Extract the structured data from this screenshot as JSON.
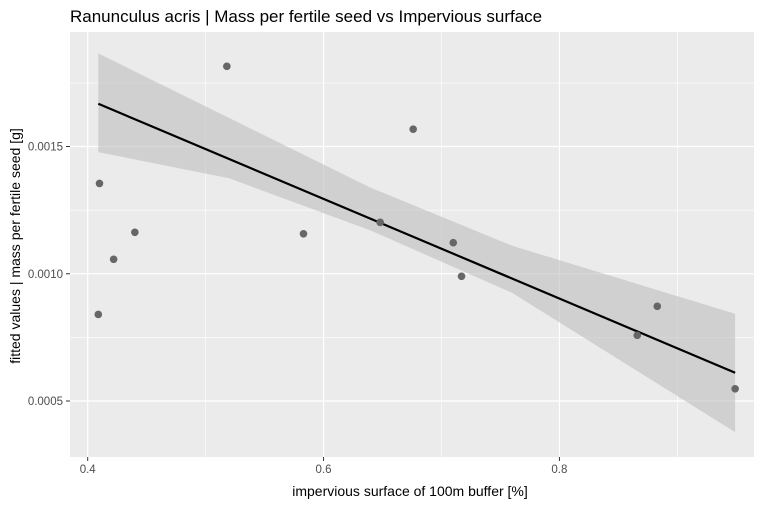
{
  "chart_data": {
    "type": "scatter",
    "title": "Ranunculus acris | Mass per fertile seed vs Impervious surface",
    "xlabel": "impervious surface of 100m buffer [%]",
    "ylabel": "fitted values | mass per fertile seed [g]",
    "xlim": [
      0.385,
      0.965
    ],
    "ylim": [
      0.00028,
      0.00195
    ],
    "x_ticks": [
      0.4,
      0.6,
      0.8
    ],
    "x_tick_labels": [
      "0.4",
      "0.6",
      "0.8"
    ],
    "y_ticks": [
      0.0005,
      0.001,
      0.0015
    ],
    "y_tick_labels": [
      "0.0005",
      "0.0010",
      "0.0015"
    ],
    "grid": true,
    "legend": "none",
    "points": [
      {
        "x": 0.409,
        "y": 0.00084
      },
      {
        "x": 0.41,
        "y": 0.001355
      },
      {
        "x": 0.422,
        "y": 0.001057
      },
      {
        "x": 0.44,
        "y": 0.001163
      },
      {
        "x": 0.518,
        "y": 0.001815
      },
      {
        "x": 0.583,
        "y": 0.001157
      },
      {
        "x": 0.648,
        "y": 0.001202
      },
      {
        "x": 0.676,
        "y": 0.001568
      },
      {
        "x": 0.71,
        "y": 0.001122
      },
      {
        "x": 0.717,
        "y": 0.00099
      },
      {
        "x": 0.866,
        "y": 0.000758
      },
      {
        "x": 0.883,
        "y": 0.000872
      },
      {
        "x": 0.949,
        "y": 0.000548
      }
    ],
    "regression": {
      "x": [
        0.409,
        0.949
      ],
      "y": [
        0.001668,
        0.000611
      ]
    },
    "confidence_band": {
      "x": [
        0.409,
        0.52,
        0.64,
        0.76,
        0.949
      ],
      "lower": [
        0.001478,
        0.001375,
        0.00117,
        0.000925,
        0.000378
      ],
      "upper": [
        0.001866,
        0.001612,
        0.001338,
        0.00111,
        0.000843
      ]
    },
    "colors": {
      "panel": "#ebebeb",
      "grid_major": "#ffffff",
      "points": "#666666",
      "line": "#000000",
      "band": "#bebebe"
    }
  }
}
